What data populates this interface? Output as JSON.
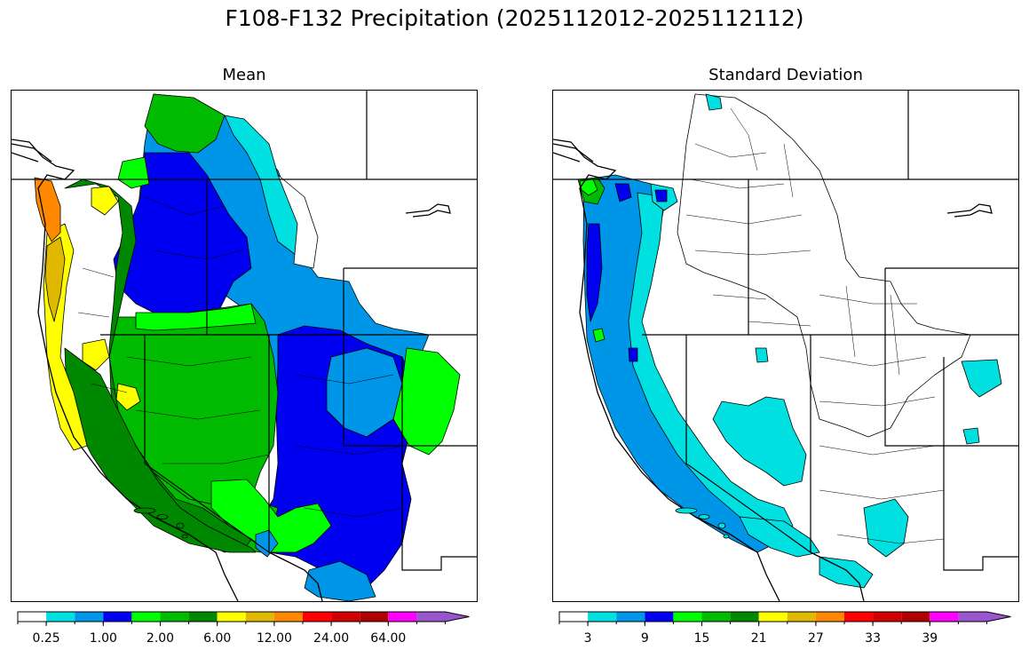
{
  "title": "F108-F132 Precipitation (2025112012-2025112112)",
  "panels": [
    {
      "id": "mean",
      "title": "Mean",
      "colorbar": {
        "colors": [
          "#ffffff",
          "#00e0e0",
          "#0096e8",
          "#0000f0",
          "#00ff00",
          "#00bb00",
          "#008800",
          "#ffff00",
          "#e0b800",
          "#ff8800",
          "#ff0000",
          "#d00000",
          "#b00000",
          "#ff00ff",
          "#9955cc"
        ],
        "tick_labels": [
          "0.25",
          "1.00",
          "2.00",
          "6.00",
          "12.00",
          "24.00",
          "64.00"
        ],
        "tick_boundaries": [
          1,
          3,
          5,
          7,
          9,
          11,
          13
        ],
        "extend": "max"
      }
    },
    {
      "id": "stddev",
      "title": "Standard Deviation",
      "colorbar": {
        "colors": [
          "#ffffff",
          "#00e0e0",
          "#0096e8",
          "#0000f0",
          "#00ff00",
          "#00bb00",
          "#008800",
          "#ffff00",
          "#e0b800",
          "#ff8800",
          "#ff0000",
          "#d00000",
          "#b00000",
          "#ff00ff",
          "#9955cc"
        ],
        "tick_labels": [
          "3",
          "9",
          "15",
          "21",
          "27",
          "33",
          "39"
        ],
        "tick_boundaries": [
          1,
          3,
          5,
          7,
          9,
          11,
          13
        ],
        "extend": "max"
      }
    }
  ],
  "legend_colors": {
    "light_blue": "#0096e8",
    "cyan": "#00e0e0",
    "blue": "#0000f0",
    "bright_green": "#00ff00",
    "green": "#00bb00",
    "dark_green": "#008800",
    "yellow": "#ffff00",
    "gold": "#e0b800",
    "orange": "#ff8800"
  }
}
